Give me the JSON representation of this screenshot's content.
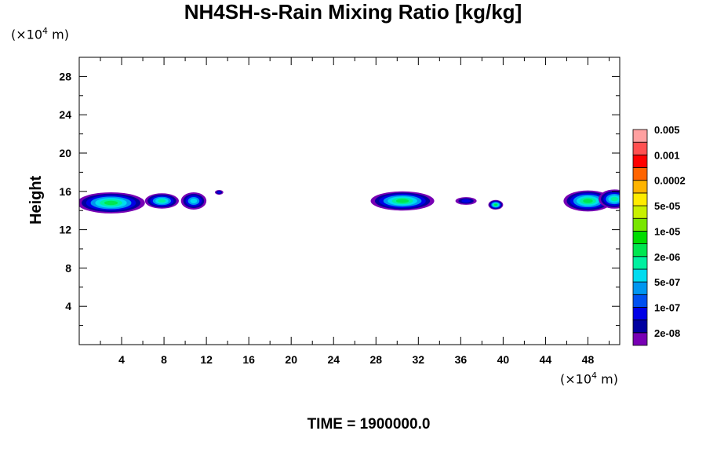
{
  "chart_data": {
    "type": "heatmap",
    "title": "NH4SH-s-Rain Mixing Ratio [kg/kg]",
    "ylabel": "Height",
    "x_unit_base": "(×10",
    "x_unit_exp": "4",
    "x_unit_tail": " m)",
    "y_unit_base": "(×10",
    "y_unit_exp": "4",
    "y_unit_tail": " m)",
    "xlim": [
      0,
      51
    ],
    "ylim": [
      0,
      30
    ],
    "x_ticks": [
      4,
      8,
      12,
      16,
      20,
      24,
      28,
      32,
      36,
      40,
      44,
      48
    ],
    "y_ticks": [
      4,
      8,
      12,
      16,
      20,
      24,
      28
    ],
    "grid": false,
    "colorbar": {
      "colors": [
        "#7800b4",
        "#0000a0",
        "#0000e6",
        "#0050f0",
        "#0096f0",
        "#00dcf0",
        "#00f0a0",
        "#00e650",
        "#00dc00",
        "#78e600",
        "#c8f000",
        "#ffeb00",
        "#ffb400",
        "#ff6400",
        "#ff0000",
        "#ff5050",
        "#ffa0a0"
      ],
      "labels": [
        "2e-08",
        "1e-07",
        "5e-07",
        "2e-06",
        "1e-05",
        "5e-05",
        "0.0002",
        "0.001",
        "0.005"
      ]
    },
    "features": [
      {
        "xc": 3.0,
        "yc": 14.8,
        "rx": 3.2,
        "ry": 1.1,
        "level": 4
      },
      {
        "xc": 7.8,
        "yc": 15.0,
        "rx": 1.6,
        "ry": 0.8,
        "level": 3
      },
      {
        "xc": 10.8,
        "yc": 15.0,
        "rx": 1.2,
        "ry": 0.9,
        "level": 2
      },
      {
        "xc": 13.2,
        "yc": 15.9,
        "rx": 0.4,
        "ry": 0.25,
        "level": 0
      },
      {
        "xc": 30.5,
        "yc": 15.0,
        "rx": 3.0,
        "ry": 1.0,
        "level": 4
      },
      {
        "xc": 36.5,
        "yc": 15.0,
        "rx": 1.0,
        "ry": 0.4,
        "level": 0
      },
      {
        "xc": 39.3,
        "yc": 14.6,
        "rx": 0.7,
        "ry": 0.5,
        "level": 4
      },
      {
        "xc": 48.0,
        "yc": 15.0,
        "rx": 2.3,
        "ry": 1.1,
        "level": 4
      },
      {
        "xc": 50.5,
        "yc": 15.2,
        "rx": 1.5,
        "ry": 1.0,
        "level": 3
      }
    ]
  },
  "time_label": "TIME = 1900000.0"
}
